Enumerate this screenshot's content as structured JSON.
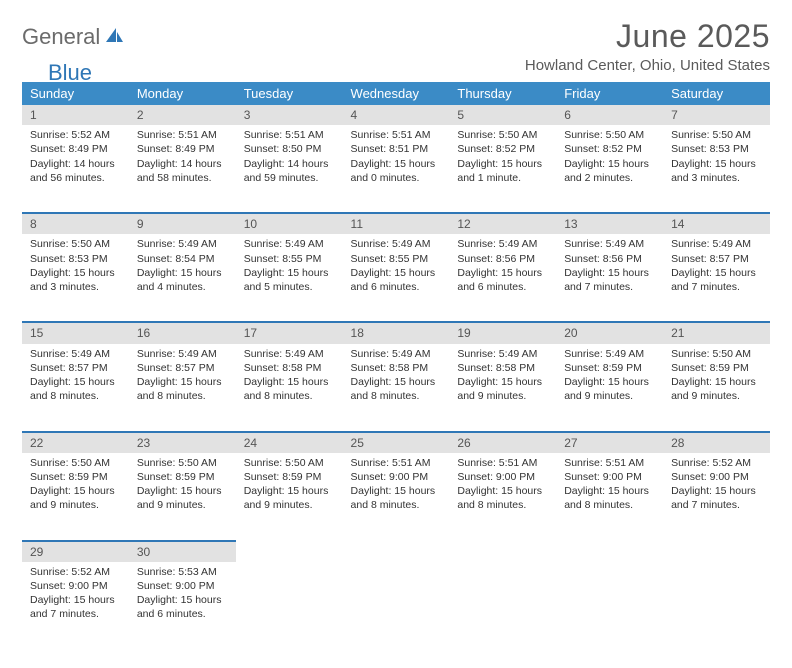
{
  "brand": {
    "part1": "General",
    "part2": "Blue"
  },
  "title": "June 2025",
  "location": "Howland Center, Ohio, United States",
  "header_color": "#3b8bc6",
  "accent_color": "#2f77b6",
  "daynum_bg": "#e2e2e2",
  "text_color": "#333333",
  "columns": [
    "Sunday",
    "Monday",
    "Tuesday",
    "Wednesday",
    "Thursday",
    "Friday",
    "Saturday"
  ],
  "weeks": [
    [
      {
        "n": "1",
        "sr": "5:52 AM",
        "ss": "8:49 PM",
        "dl": "14 hours and 56 minutes."
      },
      {
        "n": "2",
        "sr": "5:51 AM",
        "ss": "8:49 PM",
        "dl": "14 hours and 58 minutes."
      },
      {
        "n": "3",
        "sr": "5:51 AM",
        "ss": "8:50 PM",
        "dl": "14 hours and 59 minutes."
      },
      {
        "n": "4",
        "sr": "5:51 AM",
        "ss": "8:51 PM",
        "dl": "15 hours and 0 minutes."
      },
      {
        "n": "5",
        "sr": "5:50 AM",
        "ss": "8:52 PM",
        "dl": "15 hours and 1 minute."
      },
      {
        "n": "6",
        "sr": "5:50 AM",
        "ss": "8:52 PM",
        "dl": "15 hours and 2 minutes."
      },
      {
        "n": "7",
        "sr": "5:50 AM",
        "ss": "8:53 PM",
        "dl": "15 hours and 3 minutes."
      }
    ],
    [
      {
        "n": "8",
        "sr": "5:50 AM",
        "ss": "8:53 PM",
        "dl": "15 hours and 3 minutes."
      },
      {
        "n": "9",
        "sr": "5:49 AM",
        "ss": "8:54 PM",
        "dl": "15 hours and 4 minutes."
      },
      {
        "n": "10",
        "sr": "5:49 AM",
        "ss": "8:55 PM",
        "dl": "15 hours and 5 minutes."
      },
      {
        "n": "11",
        "sr": "5:49 AM",
        "ss": "8:55 PM",
        "dl": "15 hours and 6 minutes."
      },
      {
        "n": "12",
        "sr": "5:49 AM",
        "ss": "8:56 PM",
        "dl": "15 hours and 6 minutes."
      },
      {
        "n": "13",
        "sr": "5:49 AM",
        "ss": "8:56 PM",
        "dl": "15 hours and 7 minutes."
      },
      {
        "n": "14",
        "sr": "5:49 AM",
        "ss": "8:57 PM",
        "dl": "15 hours and 7 minutes."
      }
    ],
    [
      {
        "n": "15",
        "sr": "5:49 AM",
        "ss": "8:57 PM",
        "dl": "15 hours and 8 minutes."
      },
      {
        "n": "16",
        "sr": "5:49 AM",
        "ss": "8:57 PM",
        "dl": "15 hours and 8 minutes."
      },
      {
        "n": "17",
        "sr": "5:49 AM",
        "ss": "8:58 PM",
        "dl": "15 hours and 8 minutes."
      },
      {
        "n": "18",
        "sr": "5:49 AM",
        "ss": "8:58 PM",
        "dl": "15 hours and 8 minutes."
      },
      {
        "n": "19",
        "sr": "5:49 AM",
        "ss": "8:58 PM",
        "dl": "15 hours and 9 minutes."
      },
      {
        "n": "20",
        "sr": "5:49 AM",
        "ss": "8:59 PM",
        "dl": "15 hours and 9 minutes."
      },
      {
        "n": "21",
        "sr": "5:50 AM",
        "ss": "8:59 PM",
        "dl": "15 hours and 9 minutes."
      }
    ],
    [
      {
        "n": "22",
        "sr": "5:50 AM",
        "ss": "8:59 PM",
        "dl": "15 hours and 9 minutes."
      },
      {
        "n": "23",
        "sr": "5:50 AM",
        "ss": "8:59 PM",
        "dl": "15 hours and 9 minutes."
      },
      {
        "n": "24",
        "sr": "5:50 AM",
        "ss": "8:59 PM",
        "dl": "15 hours and 9 minutes."
      },
      {
        "n": "25",
        "sr": "5:51 AM",
        "ss": "9:00 PM",
        "dl": "15 hours and 8 minutes."
      },
      {
        "n": "26",
        "sr": "5:51 AM",
        "ss": "9:00 PM",
        "dl": "15 hours and 8 minutes."
      },
      {
        "n": "27",
        "sr": "5:51 AM",
        "ss": "9:00 PM",
        "dl": "15 hours and 8 minutes."
      },
      {
        "n": "28",
        "sr": "5:52 AM",
        "ss": "9:00 PM",
        "dl": "15 hours and 7 minutes."
      }
    ],
    [
      {
        "n": "29",
        "sr": "5:52 AM",
        "ss": "9:00 PM",
        "dl": "15 hours and 7 minutes."
      },
      {
        "n": "30",
        "sr": "5:53 AM",
        "ss": "9:00 PM",
        "dl": "15 hours and 6 minutes."
      },
      null,
      null,
      null,
      null,
      null
    ]
  ],
  "labels": {
    "sunrise_prefix": "Sunrise: ",
    "sunset_prefix": "Sunset: ",
    "daylight_prefix": "Daylight: "
  }
}
